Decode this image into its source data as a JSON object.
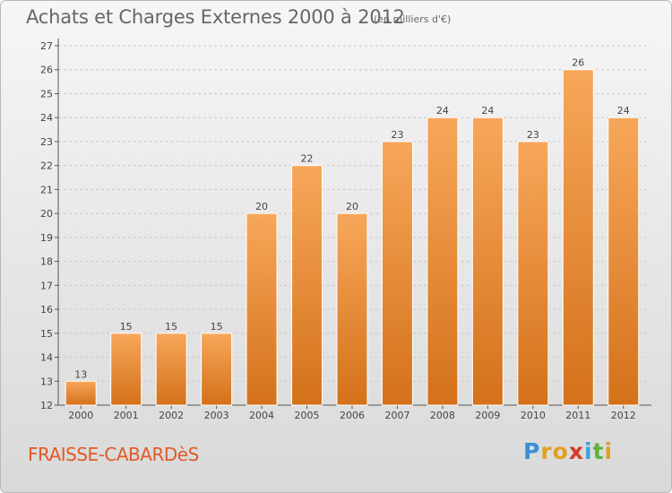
{
  "header": {
    "title": "Achats et Charges Externes 2000 à 2012",
    "subtitle": "(en milliers d'€)"
  },
  "footer": {
    "commune": "FRAISSE-CABARDèS",
    "logo_letters": [
      "P",
      "r",
      "o",
      "x",
      "i",
      "t",
      "i"
    ],
    "logo_colors": [
      "#3a8fd6",
      "#e2a020",
      "#e2a020",
      "#d63a2a",
      "#3aa3d6",
      "#5bb33a",
      "#e2a020"
    ]
  },
  "chart_data": {
    "type": "bar",
    "title": "Achats et Charges Externes 2000 à 2012",
    "subtitle": "(en milliers d'€)",
    "categories": [
      "2000",
      "2001",
      "2002",
      "2003",
      "2004",
      "2005",
      "2006",
      "2007",
      "2008",
      "2009",
      "2010",
      "2011",
      "2012"
    ],
    "values": [
      13,
      15,
      15,
      15,
      20,
      22,
      20,
      23,
      24,
      24,
      23,
      26,
      24
    ],
    "ylim": [
      12,
      27
    ],
    "yticks": [
      12,
      13,
      14,
      15,
      16,
      17,
      18,
      19,
      20,
      21,
      22,
      23,
      24,
      25,
      26,
      27
    ],
    "grid": true,
    "bar_color_top": "#f7a75a",
    "bar_color_bottom": "#d4711a"
  }
}
